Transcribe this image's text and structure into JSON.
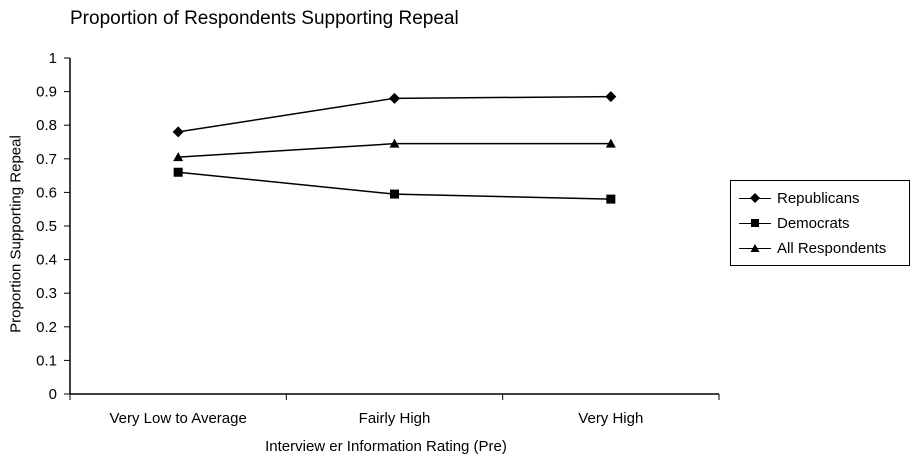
{
  "chart_data": {
    "type": "line",
    "title": "Proportion of Respondents Supporting Repeal",
    "xlabel": "Interview er Information Rating (Pre)",
    "ylabel": "Proportion Supporting Repeal",
    "categories": [
      "Very Low  to Average",
      "Fairly High",
      "Very High"
    ],
    "ylim": [
      0,
      1
    ],
    "yticks": [
      "0",
      "0.1",
      "0.2",
      "0.3",
      "0.4",
      "0.5",
      "0.6",
      "0.7",
      "0.8",
      "0.9",
      "1"
    ],
    "grid": false,
    "legend_position": "right",
    "series": [
      {
        "name": "Republicans",
        "marker": "diamond",
        "values": [
          0.78,
          0.88,
          0.885
        ]
      },
      {
        "name": "Democrats",
        "marker": "square",
        "values": [
          0.66,
          0.595,
          0.58
        ]
      },
      {
        "name": "All Respondents",
        "marker": "triangle",
        "values": [
          0.705,
          0.745,
          0.745
        ]
      }
    ],
    "colors": {
      "line": "#000000",
      "axis": "#000000",
      "background": "#ffffff"
    }
  }
}
